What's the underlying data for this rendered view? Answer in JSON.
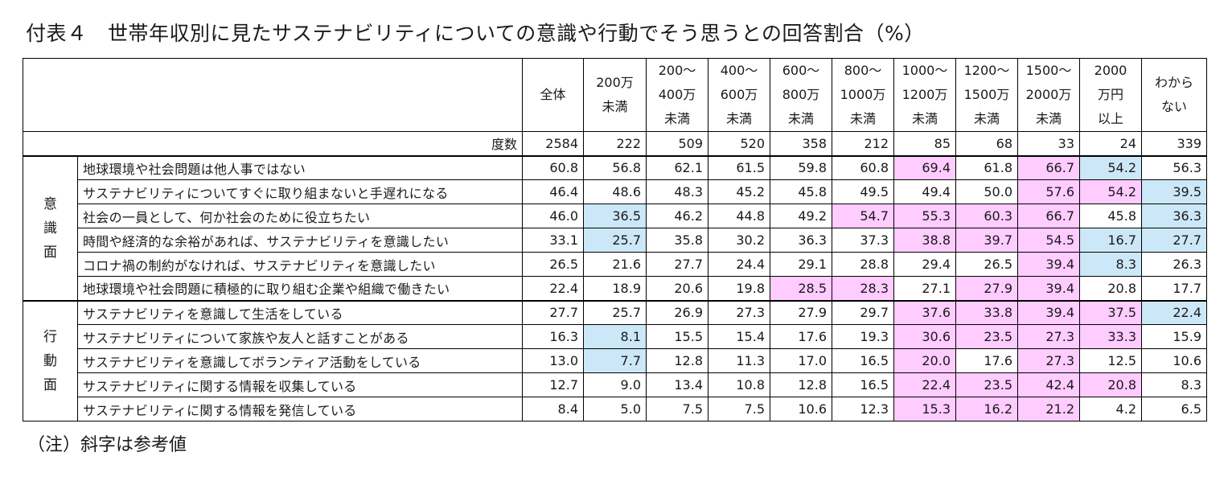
{
  "title": "付表４　世帯年収別に見たサステナビリティについての意識や行動でそう思うとの回答割合（%）",
  "note": "（注）斜字は参考値",
  "columns": [
    [
      "全体"
    ],
    [
      "200万",
      "未満"
    ],
    [
      "200～",
      "400万",
      "未満"
    ],
    [
      "400～",
      "600万",
      "未満"
    ],
    [
      "600～",
      "800万",
      "未満"
    ],
    [
      "800～",
      "1000万",
      "未満"
    ],
    [
      "1000～",
      "1200万",
      "未満"
    ],
    [
      "1200～",
      "1500万",
      "未満"
    ],
    [
      "1500～",
      "2000万",
      "未満"
    ],
    [
      "2000",
      "万円",
      "以上"
    ],
    [
      "わから",
      "ない"
    ]
  ],
  "count_label": "度数",
  "counts": [
    "2584",
    "222",
    "509",
    "520",
    "358",
    "212",
    "85",
    "68",
    "33",
    "24",
    "339"
  ],
  "groups": [
    {
      "name": [
        "意",
        "識",
        "面"
      ],
      "rows": [
        {
          "label": "地球環境や社会問題は他人事ではない",
          "values": [
            "60.8",
            "56.8",
            "62.1",
            "61.5",
            "59.8",
            "60.8",
            "69.4",
            "61.8",
            "66.7",
            "54.2",
            "56.3"
          ],
          "highlight": [
            "",
            "",
            "",
            "",
            "",
            "",
            "pink",
            "",
            "pink",
            "blue",
            ""
          ]
        },
        {
          "label": "サステナビリティについてすぐに取り組まないと手遅れになる",
          "values": [
            "46.4",
            "48.6",
            "48.3",
            "45.2",
            "45.8",
            "49.5",
            "49.4",
            "50.0",
            "57.6",
            "54.2",
            "39.5"
          ],
          "highlight": [
            "",
            "",
            "",
            "",
            "",
            "",
            "",
            "",
            "pink",
            "pink",
            "blue"
          ]
        },
        {
          "label": "社会の一員として、何か社会のために役立ちたい",
          "values": [
            "46.0",
            "36.5",
            "46.2",
            "44.8",
            "49.2",
            "54.7",
            "55.3",
            "60.3",
            "66.7",
            "45.8",
            "36.3"
          ],
          "highlight": [
            "",
            "blue",
            "",
            "",
            "",
            "pink",
            "pink",
            "pink",
            "pink",
            "",
            "blue"
          ]
        },
        {
          "label": "時間や経済的な余裕があれば、サステナビリティを意識したい",
          "values": [
            "33.1",
            "25.7",
            "35.8",
            "30.2",
            "36.3",
            "37.3",
            "38.8",
            "39.7",
            "54.5",
            "16.7",
            "27.7"
          ],
          "highlight": [
            "",
            "blue",
            "",
            "",
            "",
            "",
            "pink",
            "pink",
            "pink",
            "blue",
            "blue"
          ]
        },
        {
          "label": "コロナ禍の制約がなければ、サステナビリティを意識したい",
          "values": [
            "26.5",
            "21.6",
            "27.7",
            "24.4",
            "29.1",
            "28.8",
            "29.4",
            "26.5",
            "39.4",
            "8.3",
            "26.3"
          ],
          "highlight": [
            "",
            "",
            "",
            "",
            "",
            "",
            "",
            "",
            "pink",
            "blue",
            ""
          ]
        },
        {
          "label": "地球環境や社会問題に積極的に取り組む企業や組織で働きたい",
          "values": [
            "22.4",
            "18.9",
            "20.6",
            "19.8",
            "28.5",
            "28.3",
            "27.1",
            "27.9",
            "39.4",
            "20.8",
            "17.7"
          ],
          "highlight": [
            "",
            "",
            "",
            "",
            "pink",
            "pink",
            "",
            "pink",
            "pink",
            "",
            ""
          ]
        }
      ]
    },
    {
      "name": [
        "行",
        "動",
        "面"
      ],
      "rows": [
        {
          "label": "サステナビリティを意識して生活をしている",
          "values": [
            "27.7",
            "25.7",
            "26.9",
            "27.3",
            "27.9",
            "29.7",
            "37.6",
            "33.8",
            "39.4",
            "37.5",
            "22.4"
          ],
          "highlight": [
            "",
            "",
            "",
            "",
            "",
            "",
            "pink",
            "pink",
            "pink",
            "pink",
            "blue"
          ]
        },
        {
          "label": "サステナビリティについて家族や友人と話すことがある",
          "values": [
            "16.3",
            "8.1",
            "15.5",
            "15.4",
            "17.6",
            "19.3",
            "30.6",
            "23.5",
            "27.3",
            "33.3",
            "15.9"
          ],
          "highlight": [
            "",
            "blue",
            "",
            "",
            "",
            "",
            "pink",
            "pink",
            "pink",
            "pink",
            ""
          ]
        },
        {
          "label": "サステナビリティを意識してボランティア活動をしている",
          "values": [
            "13.0",
            "7.7",
            "12.8",
            "11.3",
            "17.0",
            "16.5",
            "20.0",
            "17.6",
            "27.3",
            "12.5",
            "10.6"
          ],
          "highlight": [
            "",
            "blue",
            "",
            "",
            "",
            "",
            "pink",
            "",
            "pink",
            "",
            ""
          ]
        },
        {
          "label": "サステナビリティに関する情報を収集している",
          "values": [
            "12.7",
            "9.0",
            "13.4",
            "10.8",
            "12.8",
            "16.5",
            "22.4",
            "23.5",
            "42.4",
            "20.8",
            "8.3"
          ],
          "highlight": [
            "",
            "",
            "",
            "",
            "",
            "",
            "pink",
            "pink",
            "pink",
            "pink",
            ""
          ]
        },
        {
          "label": "サステナビリティに関する情報を発信している",
          "values": [
            "8.4",
            "5.0",
            "7.5",
            "7.5",
            "10.6",
            "12.3",
            "15.3",
            "16.2",
            "21.2",
            "4.2",
            "6.5"
          ],
          "highlight": [
            "",
            "",
            "",
            "",
            "",
            "",
            "pink",
            "pink",
            "pink",
            "",
            ""
          ]
        }
      ]
    }
  ],
  "colors": {
    "pink": "#ffccff",
    "blue": "#cce8f8"
  }
}
